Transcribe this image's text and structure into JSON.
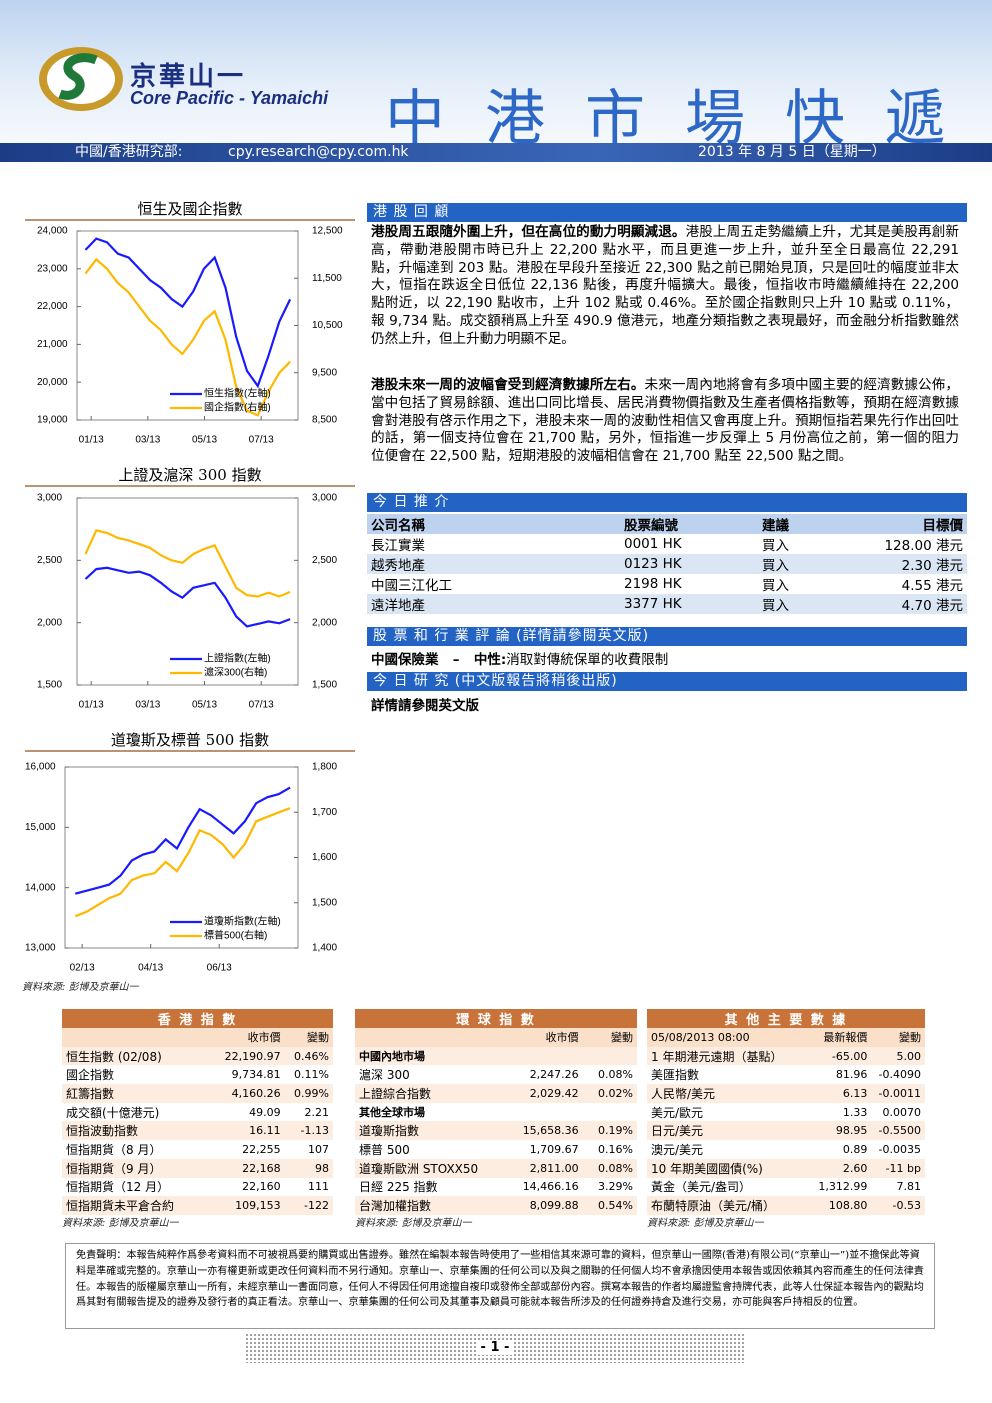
{
  "header": {
    "logo_cn": "京華山一",
    "logo_en": "Core Pacific - Yamaichi",
    "title": "中港市場快遞",
    "dept": "中國/香港研究部:",
    "email": "cpy.research@cpy.com.hk",
    "date": "2013 年 8 月 5 日（星期一）"
  },
  "chart_data": [
    {
      "type": "line",
      "title": "恒生及國企指數",
      "legend": "lower right",
      "x": [
        -0.2,
        0.18,
        0.56,
        0.94,
        1.32,
        1.7,
        2.08,
        2.46,
        2.84,
        3.22,
        3.6,
        3.98,
        4.36,
        4.74,
        5.12,
        5.5,
        5.88,
        6.26,
        6.64,
        7.02
      ],
      "xlim": [
        -0.5,
        7.3
      ],
      "xticks": [
        {
          "value": 0,
          "label": "01/13"
        },
        {
          "value": 2,
          "label": "03/13"
        },
        {
          "value": 4,
          "label": "05/13"
        },
        {
          "value": 6,
          "label": "07/13"
        }
      ],
      "ylim": [
        19000,
        24000
      ],
      "yticks": [
        {
          "value": 19000,
          "label": "19,000"
        },
        {
          "value": 20000,
          "label": "20,000"
        },
        {
          "value": 21000,
          "label": "21,000"
        },
        {
          "value": 22000,
          "label": "22,000"
        },
        {
          "value": 23000,
          "label": "23,000"
        },
        {
          "value": 24000,
          "label": "24,000"
        }
      ],
      "y2lim": [
        8500,
        12500
      ],
      "y2ticks": [
        {
          "value": 8500,
          "label": "8,500"
        },
        {
          "value": 9500,
          "label": "9,500"
        },
        {
          "value": 10500,
          "label": "10,500"
        },
        {
          "value": 11500,
          "label": "11,500"
        },
        {
          "value": 12500,
          "label": "12,500"
        }
      ],
      "series": [
        {
          "name": "恒生指數(左軸)",
          "color": "#1a1aff",
          "values": [
            23500,
            23800,
            23700,
            23400,
            23300,
            23000,
            22700,
            22500,
            22200,
            22000,
            22400,
            23000,
            23300,
            22500,
            21200,
            20300,
            19900,
            20700,
            21600,
            22190
          ]
        },
        {
          "name": "國企指數(右軸)",
          "color": "#ffb800",
          "axis": "y2",
          "values": [
            11600,
            11900,
            11700,
            11400,
            11200,
            10900,
            10600,
            10400,
            10100,
            9900,
            10200,
            10600,
            10800,
            10200,
            9200,
            8700,
            8600,
            9100,
            9500,
            9734
          ]
        }
      ]
    },
    {
      "type": "line",
      "title": "上證及滬深 300 指數",
      "legend": "lower right",
      "x": [
        -0.2,
        0.18,
        0.56,
        0.94,
        1.32,
        1.7,
        2.08,
        2.46,
        2.84,
        3.22,
        3.6,
        3.98,
        4.36,
        4.74,
        5.12,
        5.5,
        5.88,
        6.26,
        6.64,
        7.02
      ],
      "xlim": [
        -0.5,
        7.3
      ],
      "xticks": [
        {
          "value": 0,
          "label": "01/13"
        },
        {
          "value": 2,
          "label": "03/13"
        },
        {
          "value": 4,
          "label": "05/13"
        },
        {
          "value": 6,
          "label": "07/13"
        }
      ],
      "ylim": [
        1500,
        3000
      ],
      "yticks": [
        {
          "value": 1500,
          "label": "1,500"
        },
        {
          "value": 2000,
          "label": "2,000"
        },
        {
          "value": 2500,
          "label": "2,500"
        },
        {
          "value": 3000,
          "label": "3,000"
        }
      ],
      "y2lim": [
        1500,
        3000
      ],
      "y2ticks": [
        {
          "value": 1500,
          "label": "1,500"
        },
        {
          "value": 2000,
          "label": "2,000"
        },
        {
          "value": 2500,
          "label": "2,500"
        },
        {
          "value": 3000,
          "label": "3,000"
        }
      ],
      "series": [
        {
          "name": "上證指數(左軸)",
          "color": "#1a1aff",
          "values": [
            2350,
            2430,
            2440,
            2420,
            2400,
            2410,
            2380,
            2320,
            2250,
            2200,
            2280,
            2300,
            2320,
            2200,
            2050,
            1970,
            1990,
            2010,
            1995,
            2029
          ]
        },
        {
          "name": "滬深300(右軸)",
          "color": "#ffb800",
          "axis": "y2",
          "values": [
            2550,
            2740,
            2720,
            2680,
            2660,
            2630,
            2600,
            2540,
            2500,
            2480,
            2550,
            2590,
            2620,
            2450,
            2280,
            2220,
            2210,
            2240,
            2210,
            2247
          ]
        }
      ]
    },
    {
      "type": "line",
      "title": "道瓊斯及標普 500 指數",
      "legend": "lower right",
      "x": [
        0.8,
        1.13,
        1.46,
        1.79,
        2.12,
        2.45,
        2.78,
        3.11,
        3.44,
        3.77,
        4.1,
        4.43,
        4.76,
        5.09,
        5.42,
        5.75,
        6.08,
        6.41,
        6.74,
        7.07
      ],
      "xlim": [
        0.5,
        7.3
      ],
      "xticks": [
        {
          "value": 1,
          "label": "02/13"
        },
        {
          "value": 3,
          "label": "04/13"
        },
        {
          "value": 5,
          "label": "06/13"
        }
      ],
      "ylim": [
        13000,
        16000
      ],
      "yticks": [
        {
          "value": 13000,
          "label": "13,000"
        },
        {
          "value": 14000,
          "label": "14,000"
        },
        {
          "value": 15000,
          "label": "15,000"
        },
        {
          "value": 16000,
          "label": "16,000"
        }
      ],
      "y2lim": [
        1400,
        1800
      ],
      "y2ticks": [
        {
          "value": 1400,
          "label": "1,400"
        },
        {
          "value": 1500,
          "label": "1,500"
        },
        {
          "value": 1600,
          "label": "1,600"
        },
        {
          "value": 1700,
          "label": "1,700"
        },
        {
          "value": 1800,
          "label": "1,800"
        }
      ],
      "series": [
        {
          "name": "道瓊斯指數(左軸)",
          "color": "#1a1aff",
          "values": [
            13900,
            13950,
            14000,
            14050,
            14200,
            14450,
            14550,
            14600,
            14800,
            14650,
            15000,
            15300,
            15200,
            15050,
            14900,
            15100,
            15400,
            15500,
            15550,
            15658
          ]
        },
        {
          "name": "標普500(右軸)",
          "color": "#ffb800",
          "axis": "y2",
          "values": [
            1470,
            1480,
            1495,
            1510,
            1520,
            1550,
            1560,
            1565,
            1590,
            1570,
            1610,
            1660,
            1650,
            1630,
            1600,
            1630,
            1680,
            1690,
            1700,
            1709
          ]
        }
      ]
    }
  ],
  "chart_source": "資料來源: 彭博及京華山一",
  "review": {
    "heading": "港 股 回 顧",
    "paragraphs": [
      {
        "bold": "港股周五跟隨外圍上升，但在高位的動力明顯減退。",
        "text": "港股上周五走勢繼續上升，尤其是美股再創新高，帶動港股開市時已升上 22,200 點水平，而且更進一步上升，並升至全日最高位 22,291 點，升幅達到 203 點。港股在早段升至接近 22,300 點之前已開始見頂，只是回吐的幅度並非太大，恒指在跌返全日低位 22,136 點後，再度升幅擴大。最後，恒指收市時繼續維持在 22,200 點附近，以 22,190 點收市，上升 102 點或 0.46%。至於國企指數則只上升 10 點或 0.11%，報 9,734 點。成交額稍爲上升至 490.9 億港元，地產分類指數之表現最好，而金融分析指數雖然仍然上升，但上升動力明顯不足。"
      },
      {
        "bold": "港股未來一周的波幅會受到經濟數據所左右。",
        "text": "未來一周內地將會有多項中國主要的經濟數據公佈，當中包括了貿易餘額、進出口同比增長、居民消費物價指數及生產者價格指數等，預期在經濟數據會對港股有啓示作用之下，港股未來一周的波動性相信又會再度上升。預期恒指若果先行作出回吐的話，第一個支持位會在 21,700 點，另外，恒指進一步反彈上 5 月份高位之前，第一個的阻力位便會在 22,500 點，短期港股的波幅相信會在 21,700 點至 22,500 點之間。"
      }
    ]
  },
  "picks": {
    "heading": "今 日 推 介",
    "columns": [
      "公司名稱",
      "股票編號",
      "建議",
      "目標價"
    ],
    "rows": [
      [
        "長江實業",
        "0001 HK",
        "買入",
        "128.00 港元"
      ],
      [
        "越秀地產",
        "0123 HK",
        "買入",
        "2.30 港元"
      ],
      [
        "中國三江化工",
        "2198 HK",
        "買入",
        "4.55 港元"
      ],
      [
        "遠洋地產",
        "3377 HK",
        "買入",
        "4.70 港元"
      ]
    ]
  },
  "commentary": {
    "heading": "股 票 和 行 業 評 論 (詳情請參閱英文版)",
    "sector": "中國保險業",
    "dash": "–",
    "rating": "中性:",
    "text": "消取對傳統保單的收費限制"
  },
  "research": {
    "heading": "今 日 研 究 (中文版報告將稍後出版)",
    "text": "詳情請參閱英文版"
  },
  "market_tables": [
    {
      "title": "香 港 指 數",
      "columns": [
        "收市價",
        "變動"
      ],
      "rows": [
        [
          "恒生指數 (02/08)",
          "22,190.97",
          "0.46%"
        ],
        [
          "國企指數",
          "9,734.81",
          "0.11%"
        ],
        [
          "紅籌指數",
          "4,160.26",
          "0.99%"
        ],
        [
          "成交額(十億港元)",
          "49.09",
          "2.21"
        ],
        [
          "恒指波動指數",
          "16.11",
          "-1.13"
        ],
        [
          "恒指期貨（8 月）",
          "22,255",
          "107"
        ],
        [
          "恒指期貨（9 月）",
          "22,168",
          "98"
        ],
        [
          "恒指期貨（12 月）",
          "22,160",
          "111"
        ],
        [
          "恒指期貨未平倉合約",
          "109,153",
          "-122"
        ]
      ],
      "source": "資料來源: 彭博及京華山一"
    },
    {
      "title": "環 球 指 數",
      "columns": [
        "收市價",
        "變動"
      ],
      "rows": [
        [
          "中國內地市場"
        ],
        [
          "滬深 300",
          "2,247.26",
          "0.08%"
        ],
        [
          "上證綜合指數",
          "2,029.42",
          "0.02%"
        ],
        [
          "其他全球市場"
        ],
        [
          "道瓊斯指數",
          "15,658.36",
          "0.19%"
        ],
        [
          "標普 500",
          "1,709.67",
          "0.16%"
        ],
        [
          "道瓊斯歐洲 STOXX50",
          "2,811.00",
          "0.08%"
        ],
        [
          "日經 225 指數",
          "14,466.16",
          "3.29%"
        ],
        [
          "台灣加權指數",
          "8,099.88",
          "0.54%"
        ]
      ],
      "source": "資料來源: 彭博及京華山一"
    },
    {
      "title": "其 他 主 要 數 據",
      "columns": [
        "05/08/2013 08:00",
        "最新報價",
        "變動"
      ],
      "rows": [
        [
          "1 年期港元遠期（基點）",
          "-65.00",
          "5.00"
        ],
        [
          "美匯指數",
          "81.96",
          "-0.4090"
        ],
        [
          "人民幣/美元",
          "6.13",
          "-0.0011"
        ],
        [
          "美元/歐元",
          "1.33",
          "0.0070"
        ],
        [
          "日元/美元",
          "98.95",
          "-0.5500"
        ],
        [
          "澳元/美元",
          "0.89",
          "-0.0035"
        ],
        [
          "10 年期美國國債(%)",
          "2.60",
          "-11 bp"
        ],
        [
          "黃金（美元/盎司）",
          "1,312.99",
          "7.81"
        ],
        [
          "布蘭特原油（美元/桶）",
          "108.80",
          "-0.53"
        ]
      ],
      "source": "資料來源: 彭博及京華山一"
    }
  ],
  "disclaimer": "免責聲明：本報告純粹作爲參考資料而不可被視爲要約購買或出售證券。雖然在編製本報告時使用了一些相信其來源可靠的資料，但京華山一國際(香港)有限公司(“京華山一”)並不擔保此等資料是準確或完整的。京華山一亦有權更新或更改任何資料而不另行通知。京華山一、京華集團的任何公司以及與之關聯的任何個人均不會承擔因使用本報告或因依賴其內容而產生的任何法律責任。本報告的版權屬京華山一所有，未經京華山一書面同意，任何人不得因任何用途擅自複印或發佈全部或部份內容。撰寫本報告的作者均屬證監會持牌代表，此等人仕保証本報告內的觀點均爲其對有關報告提及的證券及發行者的真正看法。京華山一、京華集團的任何公司及其董事及顧員可能就本報告所涉及的任何證券持倉及進行交易，亦可能與客戶持相反的位置。",
  "page": "- 1 -"
}
